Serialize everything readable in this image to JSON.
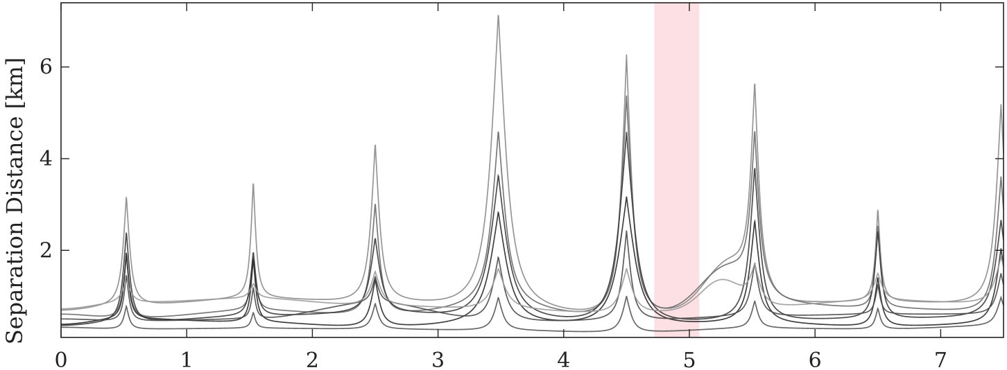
{
  "chart_data": {
    "type": "line",
    "title": "",
    "xlabel": "",
    "ylabel": "Separation Distance [km]",
    "xlim": [
      0,
      7.5
    ],
    "ylim": [
      0.1,
      7.4
    ],
    "grid": false,
    "xticks": [
      0,
      1,
      2,
      3,
      4,
      5,
      6,
      7
    ],
    "xtick_labels": [
      "0",
      "1",
      "2",
      "3",
      "4",
      "5",
      "6",
      "7"
    ],
    "yticks": [
      2,
      4,
      6
    ],
    "ytick_labels": [
      "2",
      "4",
      "6"
    ],
    "highlight_band": {
      "x_start": 4.72,
      "x_end": 5.08,
      "color": "#fde0e3"
    },
    "line_colors": [
      "#8a8a8a",
      "#6a6a6a",
      "#3a3a3a",
      "#2a2a2a",
      "#4a4a4a",
      "#9a9a9a",
      "#555555"
    ],
    "spike_x": [
      0.52,
      1.53,
      2.5,
      3.48,
      4.5,
      5.52,
      6.5,
      7.48
    ],
    "series": [
      {
        "baselines": [
          0.68,
          0.78,
          0.93,
          0.82,
          0.65,
          0.45,
          0.8,
          0.85,
          0.78
        ],
        "peaks": [
          2.8,
          3.05,
          3.9,
          6.85,
          6.0,
          4.9,
          2.48,
          4.8
        ],
        "widths": [
          0.04,
          0.03,
          0.05,
          0.09,
          0.06,
          0.05,
          0.03,
          0.06
        ],
        "bump": {
          "x": 5.3,
          "height": 1.55,
          "width": 0.25
        }
      },
      {
        "baselines": [
          0.6,
          0.5,
          0.68,
          0.55,
          0.72,
          0.4,
          0.85,
          0.72,
          0.62
        ],
        "peaks": [
          1.65,
          1.5,
          2.75,
          4.25,
          5.15,
          3.85,
          2.2,
          3.3
        ],
        "widths": [
          0.035,
          0.03,
          0.05,
          0.08,
          0.07,
          0.05,
          0.03,
          0.06
        ],
        "bump": {
          "x": 5.28,
          "height": 1.45,
          "width": 0.28
        }
      },
      {
        "baselines": [
          0.35,
          0.42,
          0.55,
          0.6,
          0.45,
          0.3,
          0.42,
          0.48,
          0.52
        ],
        "peaks": [
          2.2,
          1.7,
          1.95,
          3.4,
          4.4,
          3.6,
          2.18,
          2.4
        ],
        "widths": [
          0.04,
          0.035,
          0.06,
          0.1,
          0.09,
          0.06,
          0.04,
          0.07
        ],
        "bump": null
      },
      {
        "baselines": [
          0.38,
          0.5,
          0.42,
          0.3,
          0.35,
          0.3,
          0.38,
          0.32,
          0.38
        ],
        "peaks": [
          1.72,
          1.62,
          1.2,
          2.65,
          3.0,
          2.45,
          1.25,
          1.85
        ],
        "widths": [
          0.03,
          0.03,
          0.05,
          0.1,
          0.1,
          0.06,
          0.04,
          0.06
        ],
        "bump": null
      },
      {
        "baselines": [
          0.5,
          0.45,
          0.5,
          0.85,
          0.42,
          0.45,
          0.55,
          0.6,
          0.6
        ],
        "peaks": [
          1.25,
          0.95,
          1.0,
          1.65,
          2.2,
          1.45,
          0.95,
          1.2
        ],
        "widths": [
          0.03,
          0.025,
          0.04,
          0.07,
          0.05,
          0.05,
          0.03,
          0.05
        ],
        "bump": null
      },
      {
        "baselines": [
          0.72,
          0.85,
          0.95,
          0.78,
          0.7,
          0.6,
          0.75,
          0.9,
          0.82
        ],
        "peaks": [
          0.9,
          0.8,
          1.15,
          1.25,
          1.3,
          1.2,
          1.05,
          1.45
        ],
        "widths": [
          0.05,
          0.04,
          0.06,
          0.08,
          0.07,
          0.06,
          0.05,
          0.07
        ],
        "bump": {
          "x": 5.25,
          "height": 1.3,
          "width": 0.22
        }
      },
      {
        "baselines": [
          0.32,
          0.28,
          0.3,
          0.28,
          0.25,
          0.2,
          0.3,
          0.28,
          0.35
        ],
        "peaks": [
          0.65,
          0.5,
          0.7,
          0.85,
          0.9,
          0.75,
          0.6,
          0.8
        ],
        "widths": [
          0.03,
          0.025,
          0.04,
          0.05,
          0.05,
          0.04,
          0.03,
          0.05
        ],
        "bump": null
      }
    ]
  }
}
